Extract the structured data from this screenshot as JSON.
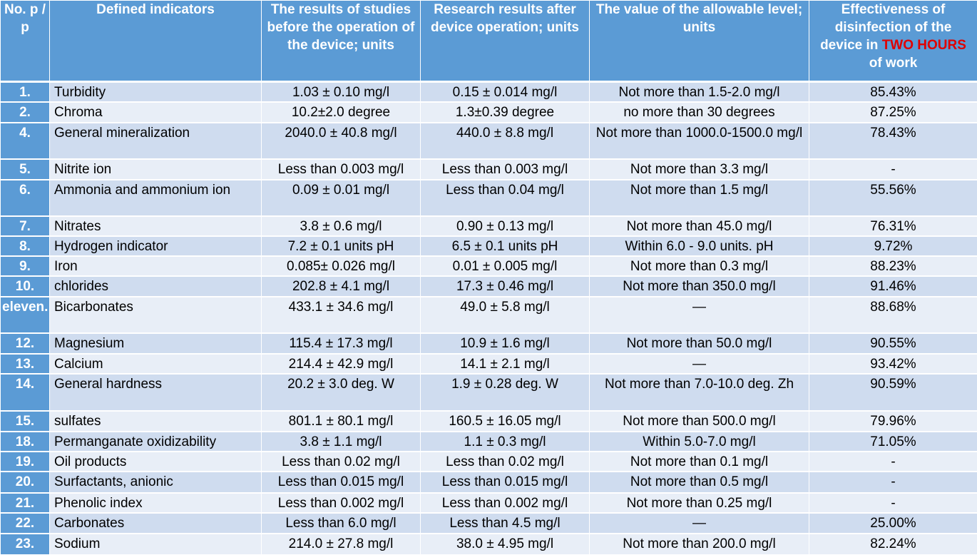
{
  "header": {
    "no": "No. p / p",
    "indicators": "Defined indicators",
    "before": "The results of studies before the operation of the device; units",
    "after": "Research results after device operation; units",
    "allowable": "The value of the allowable level; units",
    "effectiveness_prefix": "Effectiveness of disinfection of the device in ",
    "effectiveness_highlight": "TWO HOURS",
    "effectiveness_suffix": " of work"
  },
  "rows": [
    {
      "no": "1.",
      "name": "Turbidity",
      "before": "1.03 ± 0.10 mg/l",
      "after": "0.15 ± 0.014 mg/l",
      "allowable": "Not more than 1.5-2.0 mg/l",
      "effect": "85.43%"
    },
    {
      "no": "2.",
      "name": "Chroma",
      "before": "10.2±2.0 degree",
      "after": "1.3±0.39 degree",
      "allowable": "no more than 30 degrees",
      "effect": "87.25%"
    },
    {
      "no": "4.",
      "name": "General mineralization",
      "before": "2040.0 ± 40.8 mg/l",
      "after": "440.0 ± 8.8 mg/l",
      "allowable": "Not more than 1000.0-1500.0 mg/l",
      "effect": "78.43%"
    },
    {
      "no": "5.",
      "name": "Nitrite ion",
      "before": "Less than 0.003 mg/l",
      "after": "Less than 0.003 mg/l",
      "allowable": "Not more than 3.3 mg/l",
      "effect": "-"
    },
    {
      "no": "6.",
      "name": "Ammonia and ammonium ion",
      "before": "0.09 ± 0.01 mg/l",
      "after": "Less than 0.04 mg/l",
      "allowable": "Not more than 1.5 mg/l",
      "effect": "55.56%"
    },
    {
      "no": "7.",
      "name": "Nitrates",
      "before": "3.8 ± 0.6 mg/l",
      "after": "0.90 ± 0.13 mg/l",
      "allowable": "Not more than 45.0 mg/l",
      "effect": "76.31%"
    },
    {
      "no": "8.",
      "name": "Hydrogen indicator",
      "before": "7.2 ± 0.1 units pH",
      "after": "6.5 ± 0.1 units pH",
      "allowable": "Within 6.0 - 9.0 units. pH",
      "effect": "9.72%"
    },
    {
      "no": "9.",
      "name": "Iron",
      "before": "0.085± 0.026 mg/l",
      "after": "0.01 ± 0.005 mg/l",
      "allowable": "Not more than 0.3 mg/l",
      "effect": "88.23%"
    },
    {
      "no": "10.",
      "name": "chlorides",
      "before": "202.8 ± 4.1 mg/l",
      "after": "17.3 ± 0.46 mg/l",
      "allowable": "Not more than 350.0 mg/l",
      "effect": "91.46%"
    },
    {
      "no": "eleven.",
      "name": "Bicarbonates",
      "before": "433.1 ± 34.6 mg/l",
      "after": "49.0 ± 5.8 mg/l",
      "allowable": "—",
      "effect": "88.68%"
    },
    {
      "no": "12.",
      "name": "Magnesium",
      "before": "115.4 ± 17.3 mg/l",
      "after": "10.9 ± 1.6 mg/l",
      "allowable": "Not more than 50.0 mg/l",
      "effect": "90.55%"
    },
    {
      "no": "13.",
      "name": "Calcium",
      "before": "214.4 ± 42.9 mg/l",
      "after": "14.1 ± 2.1 mg/l",
      "allowable": "—",
      "effect": "93.42%"
    },
    {
      "no": "14.",
      "name": "General hardness",
      "before": "20.2 ± 3.0 deg. W",
      "after": "1.9 ± 0.28 deg. W",
      "allowable": "Not more than 7.0-10.0 deg. Zh",
      "effect": "90.59%"
    },
    {
      "no": "15.",
      "name": "sulfates",
      "before": "801.1 ± 80.1 mg/l",
      "after": "160.5 ± 16.05 mg/l",
      "allowable": "Not more than 500.0 mg/l",
      "effect": "79.96%"
    },
    {
      "no": "18.",
      "name": "Permanganate oxidizability",
      "before": "3.8 ± 1.1 mg/l",
      "after": "1.1 ± 0.3 mg/l",
      "allowable": "Within 5.0-7.0 mg/l",
      "effect": "71.05%"
    },
    {
      "no": "19.",
      "name": "Oil products",
      "before": "Less than 0.02 mg/l",
      "after": "Less than 0.02 mg/l",
      "allowable": "Not more than 0.1 mg/l",
      "effect": "-"
    },
    {
      "no": "20.",
      "name": "Surfactants, anionic",
      "before": "Less than 0.015 mg/l",
      "after": "Less than 0.015 mg/l",
      "allowable": "Not more than 0.5 mg/l",
      "effect": "-"
    },
    {
      "no": "21.",
      "name": "Phenolic index",
      "before": "Less than 0.002 mg/l",
      "after": "Less than 0.002 mg/l",
      "allowable": "Not more than 0.25 mg/l",
      "effect": "-"
    },
    {
      "no": "22.",
      "name": "Carbonates",
      "before": "Less than 6.0 mg/l",
      "after": "Less than 4.5 mg/l",
      "allowable": "—",
      "effect": "25.00%"
    },
    {
      "no": "23.",
      "name": "Sodium",
      "before": "214.0 ± 27.8 mg/l",
      "after": "38.0 ± 4.95 mg/l",
      "allowable": "Not more than 200.0 mg/l",
      "effect": "82.24%"
    }
  ]
}
